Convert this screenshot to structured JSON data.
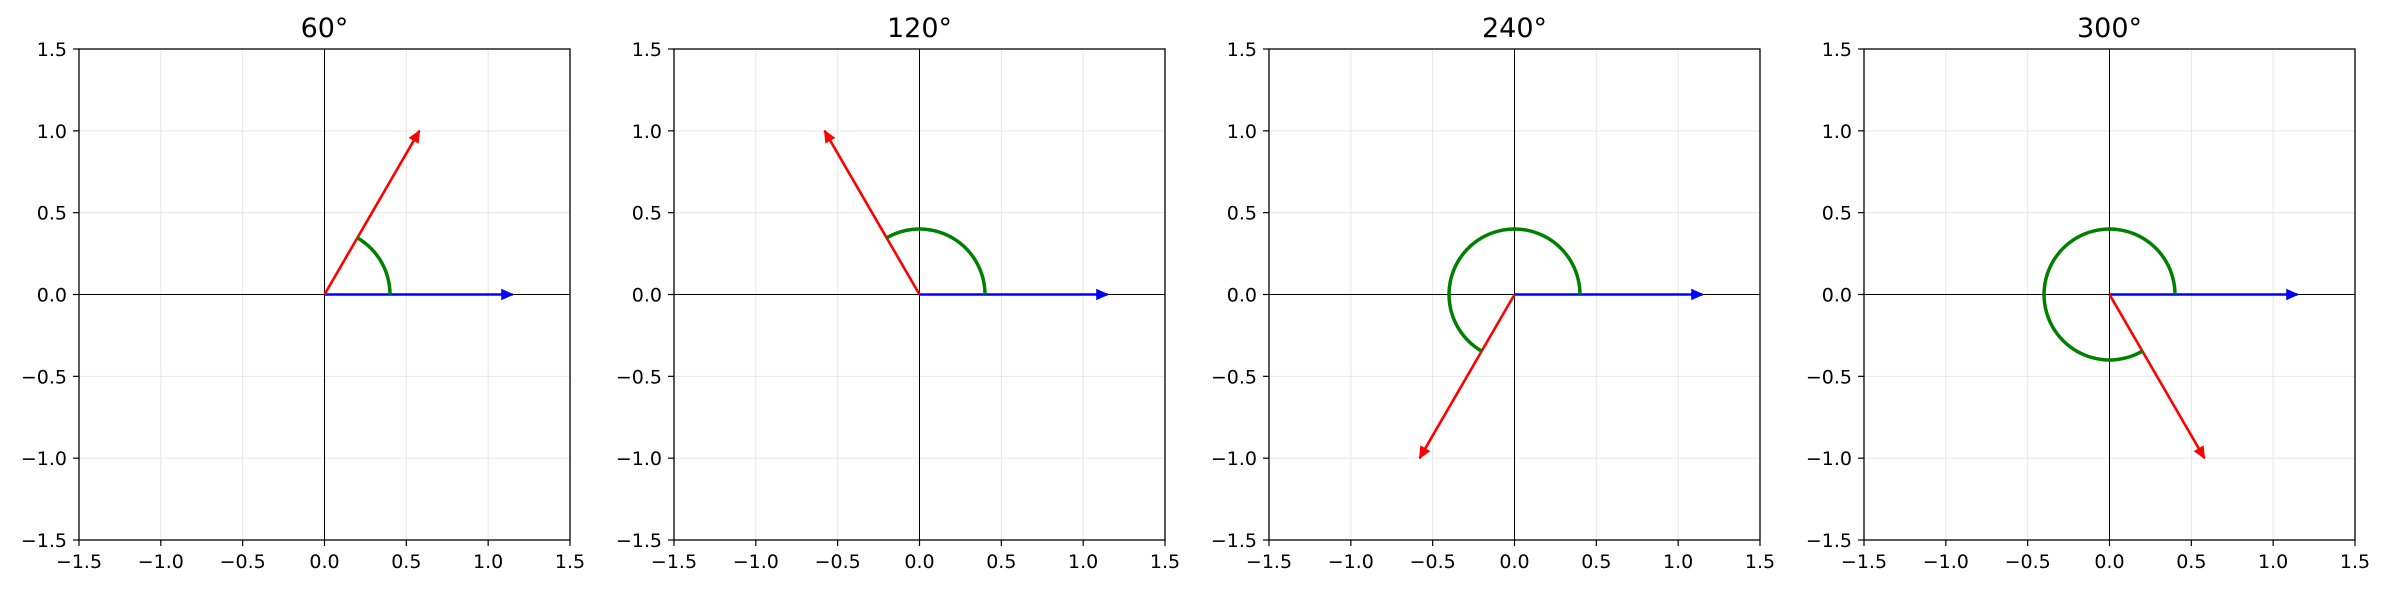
{
  "figure": {
    "background": "#ffffff",
    "grid_color": "#e6e6e6",
    "axis_line_color": "#000000"
  },
  "chart_data": [
    {
      "type": "line",
      "title": "60°",
      "xlim": [
        -1.5,
        1.5
      ],
      "ylim": [
        -1.5,
        1.5
      ],
      "xticks": [
        "−1.5",
        "−1.0",
        "−0.5",
        "0.0",
        "0.5",
        "1.0",
        "1.5"
      ],
      "yticks": [
        "−1.5",
        "−1.0",
        "−0.5",
        "0.0",
        "0.5",
        "1.0",
        "1.5"
      ],
      "grid": true,
      "angle_deg": 60,
      "series": [
        {
          "kind": "arrow",
          "color": "#0000ff",
          "x": [
            0,
            1.15
          ],
          "y": [
            0,
            0
          ]
        },
        {
          "kind": "arrow",
          "color": "#ff0000",
          "x": [
            0,
            0.58
          ],
          "y": [
            0,
            1.0
          ]
        },
        {
          "kind": "arc",
          "color": "#008000",
          "radius": 0.4,
          "start_deg": 0,
          "end_deg": 60
        }
      ]
    },
    {
      "type": "line",
      "title": "120°",
      "xlim": [
        -1.5,
        1.5
      ],
      "ylim": [
        -1.5,
        1.5
      ],
      "xticks": [
        "−1.5",
        "−1.0",
        "−0.5",
        "0.0",
        "0.5",
        "1.0",
        "1.5"
      ],
      "yticks": [
        "−1.5",
        "−1.0",
        "−0.5",
        "0.0",
        "0.5",
        "1.0",
        "1.5"
      ],
      "grid": true,
      "angle_deg": 120,
      "series": [
        {
          "kind": "arrow",
          "color": "#0000ff",
          "x": [
            0,
            1.15
          ],
          "y": [
            0,
            0
          ]
        },
        {
          "kind": "arrow",
          "color": "#ff0000",
          "x": [
            0,
            -0.58
          ],
          "y": [
            0,
            1.0
          ]
        },
        {
          "kind": "arc",
          "color": "#008000",
          "radius": 0.4,
          "start_deg": 0,
          "end_deg": 120
        }
      ]
    },
    {
      "type": "line",
      "title": "240°",
      "xlim": [
        -1.5,
        1.5
      ],
      "ylim": [
        -1.5,
        1.5
      ],
      "xticks": [
        "−1.5",
        "−1.0",
        "−0.5",
        "0.0",
        "0.5",
        "1.0",
        "1.5"
      ],
      "yticks": [
        "−1.5",
        "−1.0",
        "−0.5",
        "0.0",
        "0.5",
        "1.0",
        "1.5"
      ],
      "grid": true,
      "angle_deg": 240,
      "series": [
        {
          "kind": "arrow",
          "color": "#0000ff",
          "x": [
            0,
            1.15
          ],
          "y": [
            0,
            0
          ]
        },
        {
          "kind": "arrow",
          "color": "#ff0000",
          "x": [
            0,
            -0.58
          ],
          "y": [
            0,
            -1.0
          ]
        },
        {
          "kind": "arc",
          "color": "#008000",
          "radius": 0.4,
          "start_deg": 0,
          "end_deg": 240
        }
      ]
    },
    {
      "type": "line",
      "title": "300°",
      "xlim": [
        -1.5,
        1.5
      ],
      "ylim": [
        -1.5,
        1.5
      ],
      "xticks": [
        "−1.5",
        "−1.0",
        "−0.5",
        "0.0",
        "0.5",
        "1.0",
        "1.5"
      ],
      "yticks": [
        "−1.5",
        "−1.0",
        "−0.5",
        "0.0",
        "0.5",
        "1.0",
        "1.5"
      ],
      "grid": true,
      "angle_deg": 300,
      "series": [
        {
          "kind": "arrow",
          "color": "#0000ff",
          "x": [
            0,
            1.15
          ],
          "y": [
            0,
            0
          ]
        },
        {
          "kind": "arrow",
          "color": "#ff0000",
          "x": [
            0,
            0.58
          ],
          "y": [
            0,
            -1.0
          ]
        },
        {
          "kind": "arc",
          "color": "#008000",
          "radius": 0.4,
          "start_deg": 0,
          "end_deg": 300
        }
      ]
    }
  ]
}
